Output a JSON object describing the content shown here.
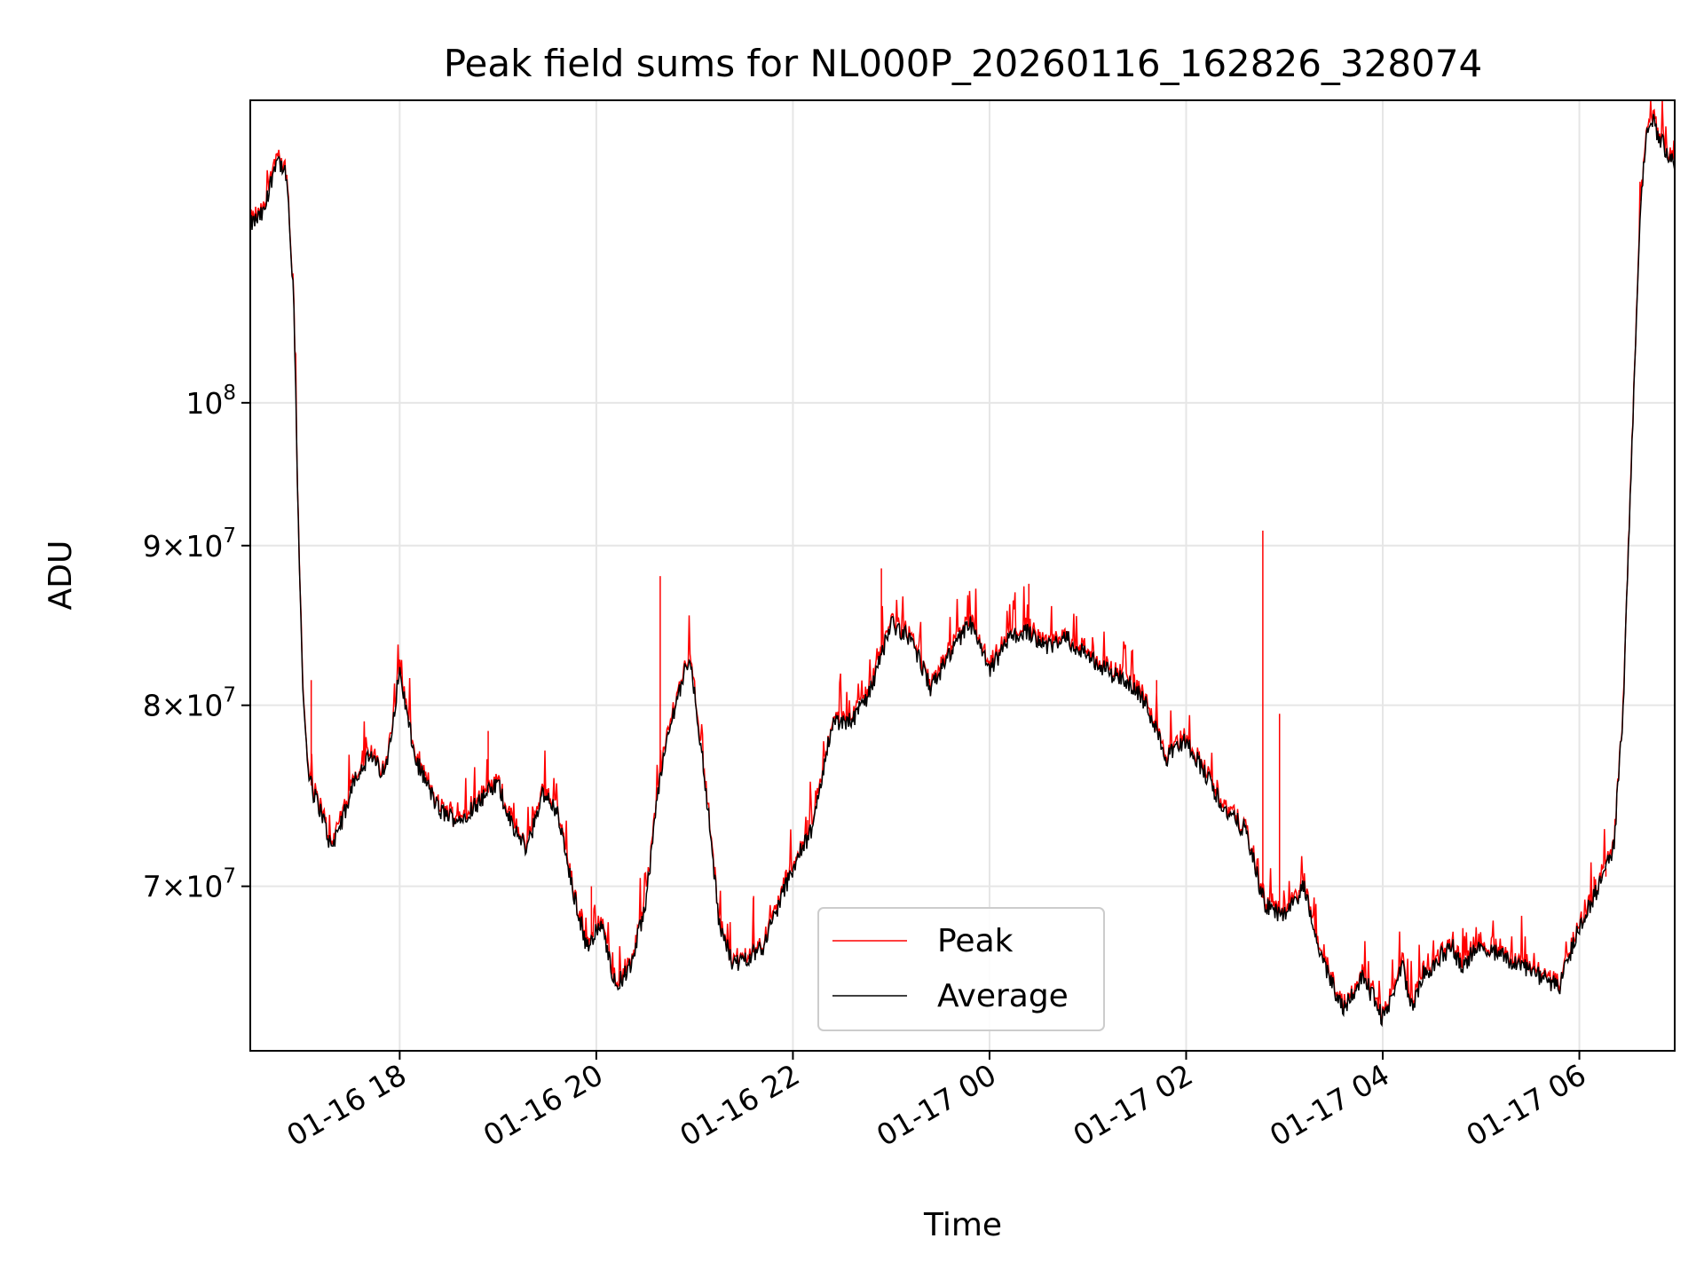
{
  "chart_data": {
    "type": "line",
    "title": "Peak field sums for NL000P_20260116_162826_328074",
    "xlabel": "Time",
    "ylabel": "ADU",
    "yscale": "log",
    "xlim": [
      16.48,
      30.97
    ],
    "ylim": [
      62000000,
      125000000
    ],
    "grid": true,
    "legend_position": "lower center",
    "x_ticks": [
      {
        "value": 18,
        "label": "01-16 18"
      },
      {
        "value": 20,
        "label": "01-16 20"
      },
      {
        "value": 22,
        "label": "01-16 22"
      },
      {
        "value": 24,
        "label": "01-17 00"
      },
      {
        "value": 26,
        "label": "01-17 02"
      },
      {
        "value": 28,
        "label": "01-17 04"
      },
      {
        "value": 30,
        "label": "01-17 06"
      }
    ],
    "y_ticks": [
      {
        "value": 70000000,
        "mantissa": "7",
        "exponent": "7"
      },
      {
        "value": 80000000,
        "mantissa": "8",
        "exponent": "7"
      },
      {
        "value": 90000000,
        "mantissa": "9",
        "exponent": "7"
      },
      {
        "value": 100000000,
        "mantissa": "10",
        "exponent": "8"
      }
    ],
    "series": [
      {
        "name": "Peak",
        "color": "#ff0000"
      },
      {
        "name": "Average",
        "color": "#000000"
      }
    ],
    "x_hours": [
      16.48,
      16.62,
      16.75,
      16.85,
      16.92,
      16.97,
      17.02,
      17.07,
      17.12,
      17.2,
      17.3,
      17.45,
      17.55,
      17.7,
      17.85,
      18.0,
      18.15,
      18.4,
      18.6,
      18.8,
      19.0,
      19.15,
      19.3,
      19.45,
      19.6,
      19.75,
      19.9,
      20.05,
      20.2,
      20.35,
      20.5,
      20.65,
      20.8,
      20.95,
      21.1,
      21.25,
      21.4,
      21.55,
      21.7,
      21.85,
      22.0,
      22.2,
      22.4,
      22.6,
      22.8,
      23.0,
      23.2,
      23.4,
      23.6,
      23.8,
      24.0,
      24.2,
      24.4,
      24.6,
      24.8,
      25.0,
      25.2,
      25.4,
      25.6,
      25.8,
      26.0,
      26.2,
      26.4,
      26.6,
      26.8,
      27.0,
      27.2,
      27.4,
      27.6,
      27.8,
      28.0,
      28.1,
      28.2,
      28.3,
      28.4,
      28.5,
      28.6,
      28.7,
      28.8,
      28.9,
      29.0,
      29.2,
      29.4,
      29.6,
      29.8,
      30.0,
      30.2,
      30.35,
      30.45,
      30.55,
      30.62,
      30.68,
      30.75,
      30.85,
      30.97
    ],
    "average_values": [
      114000000,
      115000000,
      120000000,
      118000000,
      108000000,
      91000000,
      80000000,
      76000000,
      75000000,
      74000000,
      72000000,
      74000000,
      76000000,
      77000000,
      76000000,
      82000000,
      77000000,
      74000000,
      73500000,
      74500000,
      75500000,
      73000000,
      72000000,
      75000000,
      74000000,
      70000000,
      67000000,
      68000000,
      65000000,
      66000000,
      69000000,
      76000000,
      80000000,
      83000000,
      76000000,
      68000000,
      66000000,
      66500000,
      67000000,
      69000000,
      71000000,
      73000000,
      79000000,
      79000000,
      81000000,
      85000000,
      84000000,
      81000000,
      83000000,
      85000000,
      82000000,
      84000000,
      84500000,
      83500000,
      84000000,
      83000000,
      82000000,
      81500000,
      80000000,
      77000000,
      78000000,
      76000000,
      74000000,
      73000000,
      69000000,
      68500000,
      70000000,
      66000000,
      64000000,
      65500000,
      63500000,
      64500000,
      66000000,
      64000000,
      65500000,
      66000000,
      66500000,
      67000000,
      66000000,
      66500000,
      67000000,
      66500000,
      66000000,
      65500000,
      65000000,
      68000000,
      70000000,
      72000000,
      80000000,
      100000000,
      115000000,
      122000000,
      123000000,
      121000000,
      119000000
    ],
    "peak_spikes": [
      {
        "x": 17.1,
        "value": 81500000
      },
      {
        "x": 18.9,
        "value": 78500000
      },
      {
        "x": 19.95,
        "value": 70000000
      },
      {
        "x": 20.65,
        "value": 88000000
      },
      {
        "x": 21.6,
        "value": 69500000
      },
      {
        "x": 22.15,
        "value": 73500000
      },
      {
        "x": 22.9,
        "value": 88500000
      },
      {
        "x": 24.4,
        "value": 87500000
      },
      {
        "x": 25.7,
        "value": 81500000
      },
      {
        "x": 26.78,
        "value": 91000000
      },
      {
        "x": 26.95,
        "value": 79500000
      },
      {
        "x": 30.15,
        "value": 70500000
      },
      {
        "x": 30.27,
        "value": 70500000
      }
    ]
  }
}
